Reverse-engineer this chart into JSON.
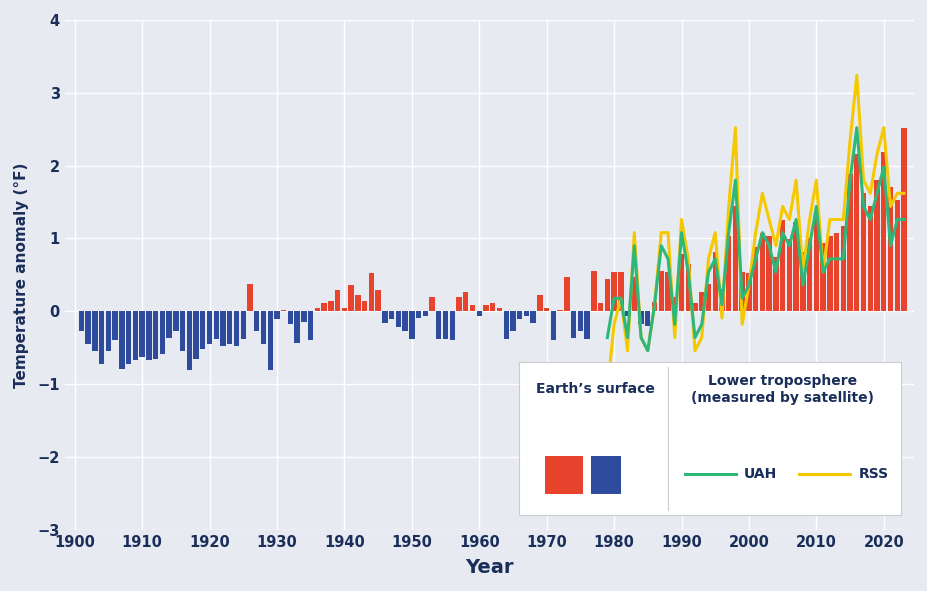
{
  "xlabel": "Year",
  "ylabel": "Temperature anomaly (°F)",
  "ylim": [
    -3,
    4
  ],
  "yticks": [
    -3,
    -2,
    -1,
    0,
    1,
    2,
    3,
    4
  ],
  "bg_color": "#e8eaf2",
  "grid_color": "#ffffff",
  "bar_pos_color": "#e8432d",
  "bar_neg_color": "#2e4b9e",
  "uah_color": "#2db87a",
  "rss_color": "#f5c800",
  "surface_years": [
    1901,
    1902,
    1903,
    1904,
    1905,
    1906,
    1907,
    1908,
    1909,
    1910,
    1911,
    1912,
    1913,
    1914,
    1915,
    1916,
    1917,
    1918,
    1919,
    1920,
    1921,
    1922,
    1923,
    1924,
    1925,
    1926,
    1927,
    1928,
    1929,
    1930,
    1931,
    1932,
    1933,
    1934,
    1935,
    1936,
    1937,
    1938,
    1939,
    1940,
    1941,
    1942,
    1943,
    1944,
    1945,
    1946,
    1947,
    1948,
    1949,
    1950,
    1951,
    1952,
    1953,
    1954,
    1955,
    1956,
    1957,
    1958,
    1959,
    1960,
    1961,
    1962,
    1963,
    1964,
    1965,
    1966,
    1967,
    1968,
    1969,
    1970,
    1971,
    1972,
    1973,
    1974,
    1975,
    1976,
    1977,
    1978,
    1979,
    1980,
    1981,
    1982,
    1983,
    1984,
    1985,
    1986,
    1987,
    1988,
    1989,
    1990,
    1991,
    1992,
    1993,
    1994,
    1995,
    1996,
    1997,
    1998,
    1999,
    2000,
    2001,
    2002,
    2003,
    2004,
    2005,
    2006,
    2007,
    2008,
    2009,
    2010,
    2011,
    2012,
    2013,
    2014,
    2015,
    2016,
    2017,
    2018,
    2019,
    2020,
    2021,
    2022,
    2023
  ],
  "surface_vals": [
    -0.27,
    -0.45,
    -0.54,
    -0.72,
    -0.54,
    -0.4,
    -0.79,
    -0.72,
    -0.67,
    -0.63,
    -0.67,
    -0.65,
    -0.58,
    -0.36,
    -0.27,
    -0.54,
    -0.81,
    -0.65,
    -0.52,
    -0.45,
    -0.38,
    -0.47,
    -0.45,
    -0.47,
    -0.38,
    0.38,
    -0.27,
    -0.45,
    -0.81,
    -0.11,
    0.02,
    -0.18,
    -0.43,
    -0.14,
    -0.4,
    0.05,
    0.11,
    0.14,
    0.29,
    0.05,
    0.36,
    0.22,
    0.14,
    0.52,
    0.29,
    -0.16,
    -0.11,
    -0.22,
    -0.27,
    -0.38,
    -0.09,
    -0.07,
    0.2,
    -0.38,
    -0.38,
    -0.4,
    0.2,
    0.27,
    0.09,
    -0.07,
    0.09,
    0.11,
    0.04,
    -0.38,
    -0.27,
    -0.11,
    -0.07,
    -0.16,
    0.22,
    0.04,
    -0.4,
    0.02,
    0.47,
    -0.36,
    -0.27,
    -0.38,
    0.56,
    0.11,
    0.45,
    0.54,
    0.54,
    -0.07,
    0.47,
    -0.18,
    -0.2,
    0.13,
    0.56,
    0.54,
    0.2,
    0.79,
    0.65,
    0.11,
    0.27,
    0.38,
    0.81,
    0.31,
    1.04,
    1.44,
    0.54,
    0.52,
    0.88,
    1.08,
    1.04,
    0.74,
    1.26,
    0.99,
    1.22,
    0.81,
    1.01,
    1.3,
    0.94,
    1.04,
    1.08,
    1.17,
    1.89,
    2.16,
    1.62,
    1.44,
    1.8,
    2.19,
    1.71,
    1.53,
    2.52
  ],
  "uah_years": [
    1979,
    1980,
    1981,
    1982,
    1983,
    1984,
    1985,
    1986,
    1987,
    1988,
    1989,
    1990,
    1991,
    1992,
    1993,
    1994,
    1995,
    1996,
    1997,
    1998,
    1999,
    2000,
    2001,
    2002,
    2003,
    2004,
    2005,
    2006,
    2007,
    2008,
    2009,
    2010,
    2011,
    2012,
    2013,
    2014,
    2015,
    2016,
    2017,
    2018,
    2019,
    2020,
    2021,
    2022,
    2023
  ],
  "uah_vals": [
    -0.36,
    0.18,
    0.18,
    -0.36,
    0.9,
    -0.36,
    -0.54,
    0.09,
    0.9,
    0.72,
    -0.18,
    1.08,
    0.54,
    -0.36,
    -0.18,
    0.54,
    0.72,
    0.09,
    1.08,
    1.8,
    0.18,
    0.36,
    0.72,
    1.08,
    0.9,
    0.54,
    1.08,
    0.9,
    1.26,
    0.36,
    0.9,
    1.44,
    0.54,
    0.72,
    0.72,
    0.72,
    1.8,
    2.52,
    1.44,
    1.26,
    1.62,
    1.98,
    0.9,
    1.26,
    1.26
  ],
  "rss_years": [
    1979,
    1980,
    1981,
    1982,
    1983,
    1984,
    1985,
    1986,
    1987,
    1988,
    1989,
    1990,
    1991,
    1992,
    1993,
    1994,
    1995,
    1996,
    1997,
    1998,
    1999,
    2000,
    2001,
    2002,
    2003,
    2004,
    2005,
    2006,
    2007,
    2008,
    2009,
    2010,
    2011,
    2012,
    2013,
    2014,
    2015,
    2016,
    2017,
    2018,
    2019,
    2020,
    2021,
    2022,
    2023
  ],
  "rss_vals": [
    -1.08,
    -0.18,
    0.18,
    -0.54,
    1.08,
    -0.36,
    -0.54,
    0.09,
    1.08,
    1.08,
    -0.36,
    1.26,
    0.72,
    -0.54,
    -0.36,
    0.72,
    1.08,
    -0.09,
    1.44,
    2.52,
    -0.18,
    0.36,
    1.08,
    1.62,
    1.26,
    0.9,
    1.44,
    1.26,
    1.8,
    0.54,
    1.26,
    1.8,
    0.54,
    1.26,
    1.26,
    1.26,
    2.34,
    3.24,
    1.8,
    1.62,
    2.16,
    2.52,
    1.44,
    1.62,
    1.62
  ],
  "legend_earth_label": "Earth’s surface",
  "legend_tropo_label": "Lower troposphere\n(measured by satellite)",
  "legend_uah_label": "UAH",
  "legend_rss_label": "RSS",
  "text_color": "#1a2e5a",
  "bar_width": 0.8,
  "xticks": [
    1900,
    1910,
    1920,
    1930,
    1940,
    1950,
    1960,
    1970,
    1980,
    1990,
    2000,
    2010,
    2020
  ],
  "xlim": [
    1898.5,
    2024.5
  ]
}
